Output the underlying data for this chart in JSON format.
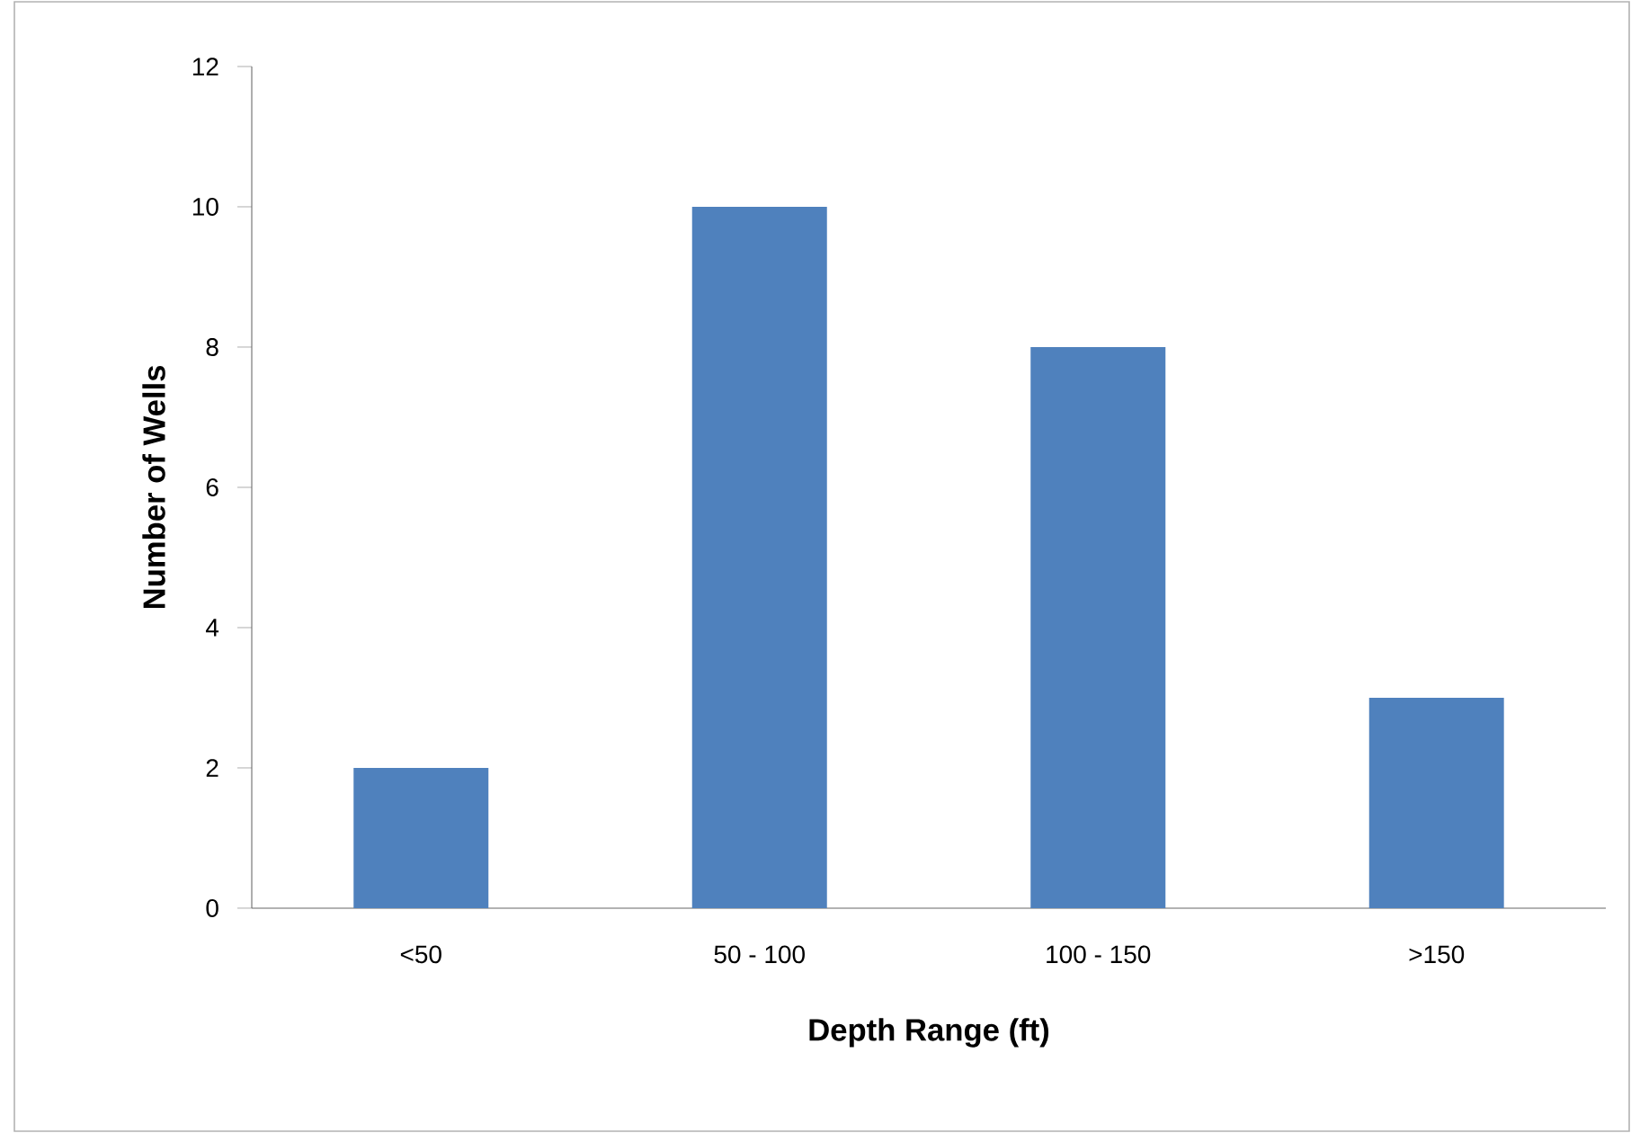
{
  "chart_data": {
    "type": "bar",
    "xlabel": "Depth Range (ft)",
    "ylabel": "Number of Wells",
    "categories": [
      "<50",
      "50 - 100",
      "100 - 150",
      ">150"
    ],
    "values": [
      2,
      10,
      8,
      3
    ],
    "color": "#4f81bd",
    "ylim": [
      0,
      12
    ],
    "yticks": [
      0,
      2,
      4,
      6,
      8,
      10,
      12
    ]
  }
}
